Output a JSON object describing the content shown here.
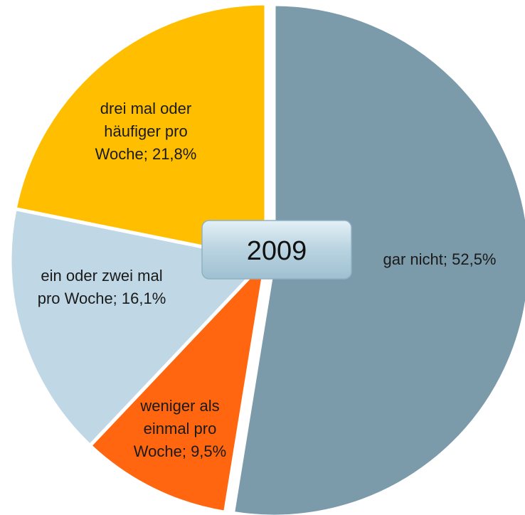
{
  "chart_data": {
    "type": "pie",
    "title": "2009",
    "values": [
      52.5,
      9.5,
      16.1,
      21.8
    ],
    "value_labels": [
      "gar nicht; 52,5%",
      "weniger als einmal pro Woche; 9,5%",
      "ein oder zwei mal pro Woche; 16,1%",
      "drei mal oder häufiger pro Woche; 21,8%"
    ],
    "colors": [
      "#7b9bab",
      "#ff660f",
      "#c0d8e6",
      "#ffbf00"
    ],
    "start_angle": 0,
    "direction": "clockwise"
  }
}
